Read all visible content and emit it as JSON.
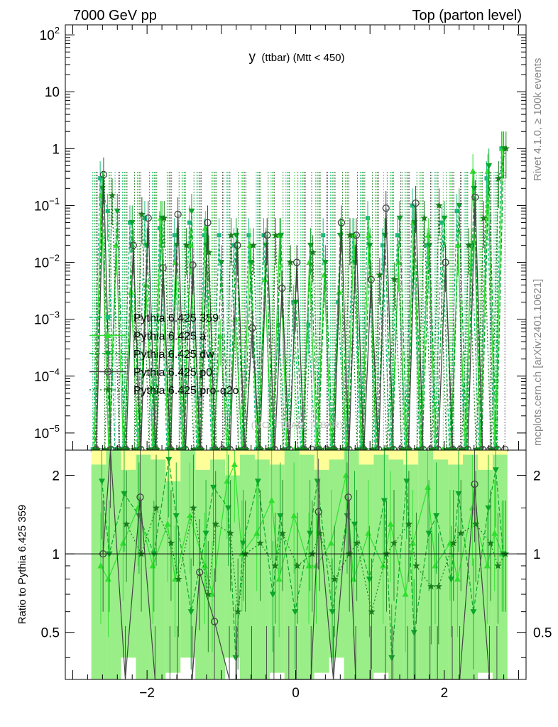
{
  "header": {
    "left": "7000 GeV pp",
    "right": "Top (parton level)"
  },
  "side_labels": {
    "rivet": "Rivet 4.1.0, ≥ 100k events",
    "mcplots": "mcplots.cern.ch [arXiv:2401.10621]"
  },
  "watermark": "(MC_TTBAR_TTBAR)",
  "chart_data": [
    {
      "type": "line",
      "title_main": "y",
      "title_rest": "(ttbar) (Mtt < 450)",
      "xlabel": "",
      "ylabel": "",
      "xlim": [
        -3.1,
        3.1
      ],
      "ylim": [
        5e-06,
        150
      ],
      "log_y": true,
      "y_ticks": [
        {
          "v": 100,
          "base": "10",
          "exp": "2"
        },
        {
          "v": 10,
          "base": "10",
          "exp": ""
        },
        {
          "v": 1,
          "base": "1",
          "exp": ""
        },
        {
          "v": 0.1,
          "base": "10",
          "exp": "−1"
        },
        {
          "v": 0.01,
          "base": "10",
          "exp": "−2"
        },
        {
          "v": 0.001,
          "base": "10",
          "exp": "−3"
        },
        {
          "v": 0.0001,
          "base": "10",
          "exp": "−4"
        },
        {
          "v": 1e-05,
          "base": "10",
          "exp": "−5"
        }
      ],
      "x": [
        -2.7,
        -2.6,
        -2.5,
        -2.4,
        -2.3,
        -2.2,
        -2.1,
        -2.0,
        -1.9,
        -1.8,
        -1.7,
        -1.6,
        -1.5,
        -1.4,
        -1.3,
        -1.2,
        -1.1,
        -1.0,
        -0.9,
        -0.8,
        -0.7,
        -0.6,
        -0.5,
        -0.4,
        -0.3,
        -0.2,
        -0.1,
        0.0,
        0.1,
        0.2,
        0.3,
        0.4,
        0.5,
        0.6,
        0.7,
        0.8,
        0.9,
        1.0,
        1.1,
        1.2,
        1.3,
        1.4,
        1.5,
        1.6,
        1.7,
        1.8,
        1.9,
        2.0,
        2.1,
        2.2,
        2.3,
        2.4,
        2.5,
        2.6,
        2.7,
        2.8
      ],
      "legend_position": "left-middle",
      "series": [
        {
          "name": "Pythia 6.425 359",
          "color": "#19bb7b",
          "marker": "square",
          "dash": "4,3",
          "values": [
            0.0,
            0.3,
            0.08,
            0.0,
            0.0,
            0.05,
            0.0,
            0.06,
            0.0,
            0.04,
            0.0,
            0.03,
            0.0,
            0.05,
            0.0,
            0.03,
            0.0,
            0.03,
            0.0,
            0.02,
            0.0,
            0.03,
            0.0,
            0.03,
            0.0,
            0.0008,
            0.0,
            0.002,
            0.0,
            0.0008,
            0.0,
            0.03,
            0.0,
            0.002,
            0.0,
            0.03,
            0.0,
            0.06,
            0.0,
            0.02,
            0.0,
            0.03,
            0.0,
            0.1,
            0.0,
            0.02,
            0.0,
            0.05,
            0.0,
            0.08,
            0.0,
            0.02,
            0.0,
            0.3,
            0.0,
            1.0
          ]
        },
        {
          "name": "Pythia 6.425 a",
          "color": "#2ee02e",
          "marker": "triangle-up",
          "dash": "",
          "values": [
            0.0,
            0.15,
            0.0,
            0.02,
            0.0,
            0.003,
            0.0,
            0.004,
            0.0,
            0.06,
            0.0,
            0.01,
            0.0,
            0.02,
            0.0,
            0.04,
            0.0,
            0.0005,
            0.0,
            0.001,
            0.0,
            0.02,
            0.0,
            0.005,
            0.0,
            0.03,
            0.0,
            0.0,
            0.0,
            0.01,
            0.0,
            0.006,
            0.0,
            0.003,
            0.0,
            0.03,
            0.0,
            0.03,
            0.0,
            0.0,
            0.0,
            0.01,
            0.0,
            0.05,
            0.0,
            0.03,
            0.0,
            0.0,
            0.0,
            0.02,
            0.0,
            0.4,
            0.0,
            0.4,
            0.0,
            1.0
          ]
        },
        {
          "name": "Pythia 6.425 dw",
          "color": "#0aa82a",
          "marker": "triangle-down",
          "dash": "6,3",
          "values": [
            0.0,
            0.2,
            0.0,
            0.08,
            0.0,
            0.05,
            0.0,
            0.02,
            0.0,
            0.06,
            0.0,
            0.02,
            0.0,
            0.08,
            0.0,
            0.02,
            0.0,
            0.01,
            0.0,
            0.03,
            0.0,
            0.01,
            0.0,
            0.02,
            0.0,
            0.03,
            0.0,
            0.002,
            0.0,
            0.02,
            0.0,
            0.01,
            0.0,
            0.03,
            0.0,
            0.01,
            0.0,
            0.02,
            0.0,
            0.03,
            0.0,
            0.06,
            0.0,
            0.05,
            0.0,
            0.02,
            0.0,
            0.06,
            0.0,
            0.1,
            0.0,
            0.2,
            0.0,
            0.5,
            0.0,
            1.0
          ]
        },
        {
          "name": "Pythia 6.425 p0",
          "color": "#444444",
          "marker": "circle",
          "dash": "",
          "values": [
            0.0,
            0.35,
            0.0,
            0.0,
            0.0,
            0.02,
            0.0,
            0.06,
            0.0,
            0.008,
            0.0,
            0.07,
            0.0,
            0.009,
            0.0,
            0.05,
            0.0,
            0.0,
            0.0,
            0.02,
            0.0,
            0.0007,
            0.0,
            0.03,
            0.0,
            0.0035,
            0.0,
            0.01,
            0.0,
            0.0,
            0.0,
            0.0,
            0.0,
            0.05,
            0.0,
            0.03,
            0.0,
            0.005,
            0.0,
            0.09,
            0.0,
            0.0,
            0.0,
            0.11,
            0.0,
            0.0,
            0.0,
            0.01,
            0.0,
            0.0,
            0.0,
            0.14,
            0.0,
            0.0,
            0.0,
            0.0
          ]
        },
        {
          "name": "Pythia 6.425 pro-q2o",
          "color": "#1d7a1d",
          "marker": "star",
          "dash": "2,3",
          "values": [
            0.0,
            0.0,
            0.15,
            0.0,
            0.0,
            0.0,
            0.07,
            0.0,
            0.0,
            0.06,
            0.0,
            0.0,
            0.02,
            0.0,
            0.0,
            0.015,
            0.0,
            0.0,
            0.03,
            0.0,
            0.0,
            0.02,
            0.0,
            0.0,
            0.03,
            0.0,
            0.01,
            0.0,
            0.0,
            0.015,
            0.0,
            0.0,
            0.0,
            0.0,
            0.03,
            0.0,
            0.0,
            0.0,
            0.006,
            0.0,
            0.005,
            0.0,
            0.0,
            0.0,
            0.06,
            0.0,
            0.1,
            0.0,
            0.0,
            0.0,
            0.02,
            0.0,
            0.06,
            0.0,
            0.3,
            1.0
          ]
        }
      ]
    },
    {
      "type": "line",
      "xlabel": "",
      "ylabel": "Ratio to Pythia 6.425 359",
      "xlim": [
        -3.1,
        3.1
      ],
      "ylim": [
        0.33,
        2.5
      ],
      "log_y": true,
      "y_ticks": [
        2,
        1,
        0.5
      ],
      "y_tick_labels": [
        "2",
        "1",
        "0.5"
      ],
      "x_ticks": [
        -2,
        0,
        2
      ],
      "x_tick_labels": [
        "−2",
        "0",
        "2"
      ],
      "reference_line": 1,
      "bands": [
        {
          "name": "outer",
          "color": "#ffff99",
          "x": [
            -2.75,
            -2.55,
            -2.35,
            -2.15,
            -1.95,
            -1.75,
            -1.55,
            -1.35,
            -1.15,
            -0.95,
            -0.75,
            -0.55,
            -0.35,
            -0.15,
            0.05,
            0.25,
            0.45,
            0.65,
            0.85,
            1.05,
            1.25,
            1.45,
            1.65,
            1.85,
            2.05,
            2.25,
            2.45,
            2.65
          ],
          "lo": [
            0.33,
            0.33,
            0.4,
            0.33,
            0.33,
            0.35,
            0.4,
            0.33,
            0.33,
            0.4,
            0.33,
            0.33,
            0.35,
            0.33,
            0.33,
            0.35,
            0.4,
            0.33,
            0.33,
            0.35,
            0.33,
            0.33,
            0.33,
            0.33,
            0.33,
            0.33,
            0.35,
            0.33
          ],
          "hi": [
            2.5,
            2.5,
            2.5,
            2.5,
            2.5,
            2.5,
            2.5,
            2.5,
            2.5,
            2.5,
            2.5,
            2.5,
            2.5,
            2.5,
            2.5,
            2.5,
            2.5,
            2.5,
            2.5,
            2.5,
            2.5,
            2.5,
            2.5,
            2.5,
            2.5,
            2.5,
            2.5,
            2.5
          ]
        },
        {
          "name": "inner",
          "color": "#99ee88",
          "x": [
            -2.75,
            -2.55,
            -2.35,
            -2.15,
            -1.95,
            -1.75,
            -1.55,
            -1.35,
            -1.15,
            -0.95,
            -0.75,
            -0.55,
            -0.35,
            -0.15,
            0.05,
            0.25,
            0.45,
            0.65,
            0.85,
            1.05,
            1.25,
            1.45,
            1.65,
            1.85,
            2.05,
            2.25,
            2.45,
            2.65
          ],
          "lo": [
            0.33,
            0.33,
            0.4,
            0.33,
            0.33,
            0.35,
            0.4,
            0.33,
            0.33,
            0.4,
            0.33,
            0.33,
            0.35,
            0.33,
            0.33,
            0.35,
            0.4,
            0.33,
            0.33,
            0.35,
            0.33,
            0.33,
            0.33,
            0.33,
            0.33,
            0.33,
            0.35,
            0.33
          ],
          "hi": [
            2.2,
            2.5,
            2.1,
            2.4,
            2.3,
            1.9,
            2.5,
            2.1,
            2.3,
            2.0,
            2.4,
            2.3,
            2.2,
            2.5,
            2.4,
            2.1,
            2.3,
            2.5,
            2.2,
            2.4,
            2.3,
            2.2,
            2.5,
            2.3,
            2.2,
            2.4,
            2.1,
            2.4
          ]
        }
      ],
      "series": [
        {
          "name": "Pythia 6.425 a",
          "color": "#2ee02e",
          "marker": "triangle-up",
          "dash": "",
          "values": [
            null,
            0.9,
            0.8,
            null,
            1.1,
            null,
            1.5,
            null,
            0.9,
            null,
            1.3,
            0.8,
            null,
            1.4,
            null,
            0.9,
            0.7,
            null,
            1.9,
            2.2,
            1.0,
            null,
            1.2,
            null,
            1.6,
            0.8,
            null,
            1.4,
            null,
            0.9,
            0.9,
            null,
            1.1,
            null,
            2.0,
            0.8,
            null,
            1.2,
            null,
            0.9,
            1.3,
            null,
            0.7,
            1.1,
            null,
            1.8,
            0.9,
            null,
            1.1,
            0.8,
            null,
            1.5,
            null,
            0.9,
            1.2,
            1.0
          ]
        },
        {
          "name": "Pythia 6.425 dw",
          "color": "#0aa82a",
          "marker": "triangle-down",
          "dash": "6,3",
          "values": [
            null,
            1.9,
            1.0,
            null,
            1.7,
            null,
            1.4,
            null,
            1.0,
            null,
            2.3,
            1.4,
            null,
            0.6,
            null,
            1.2,
            1.8,
            null,
            1.5,
            0.4,
            1.1,
            null,
            1.9,
            null,
            0.7,
            1.4,
            null,
            0.6,
            null,
            1.2,
            1.9,
            null,
            0.6,
            null,
            1.4,
            1.3,
            null,
            0.8,
            null,
            1.6,
            0.4,
            null,
            1.9,
            0.5,
            null,
            1.2,
            1.4,
            null,
            0.8,
            1.7,
            null,
            0.6,
            null,
            1.5,
            2.1,
            1.0
          ]
        },
        {
          "name": "Pythia 6.425 p0",
          "color": "#444444",
          "marker": "circle",
          "dash": "",
          "values": [
            null,
            1.0,
            2.5,
            null,
            0.33,
            null,
            1.65,
            null,
            0.33,
            null,
            0.33,
            0.33,
            null,
            0.33,
            0.85,
            null,
            0.55,
            null,
            0.33,
            0.33,
            null,
            0.33,
            null,
            0.33,
            0.33,
            null,
            0.33,
            0.33,
            null,
            0.33,
            1.45,
            null,
            0.33,
            null,
            1.65,
            0.33,
            null,
            0.33,
            null,
            0.33,
            0.33,
            null,
            0.33,
            0.33,
            null,
            0.33,
            0.33,
            null,
            0.33,
            0.33,
            null,
            1.85,
            null,
            0.33,
            0.33,
            null
          ]
        },
        {
          "name": "Pythia 6.425 pro-q2o",
          "color": "#1d7a1d",
          "marker": "star",
          "dash": "2,3",
          "values": [
            null,
            null,
            null,
            null,
            1.3,
            null,
            1.0,
            null,
            1.5,
            null,
            1.1,
            0.8,
            null,
            1.5,
            null,
            0.7,
            1.3,
            null,
            1.2,
            0.6,
            1.0,
            null,
            1.1,
            null,
            0.9,
            1.2,
            null,
            0.9,
            null,
            1.0,
            1.2,
            null,
            0.8,
            null,
            1.0,
            1.1,
            null,
            0.6,
            null,
            1.0,
            1.1,
            null,
            1.3,
            0.9,
            null,
            0.75,
            0.75,
            null,
            1.1,
            1.2,
            null,
            1.3,
            null,
            1.1,
            0.9,
            1.0
          ]
        }
      ]
    }
  ]
}
